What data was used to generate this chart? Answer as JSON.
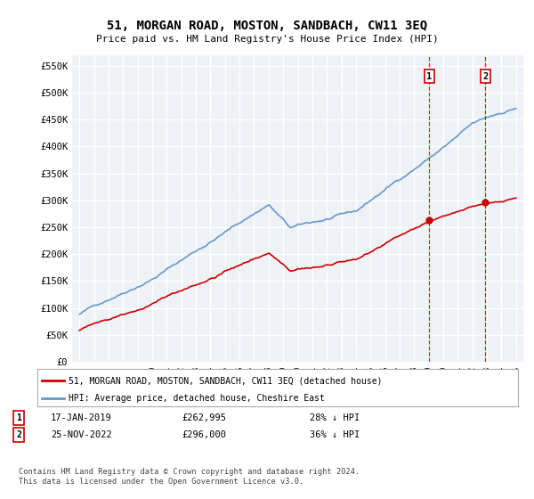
{
  "title": "51, MORGAN ROAD, MOSTON, SANDBACH, CW11 3EQ",
  "subtitle": "Price paid vs. HM Land Registry's House Price Index (HPI)",
  "ylabel_ticks": [
    "£0",
    "£50K",
    "£100K",
    "£150K",
    "£200K",
    "£250K",
    "£300K",
    "£350K",
    "£400K",
    "£450K",
    "£500K",
    "£550K"
  ],
  "ytick_values": [
    0,
    50000,
    100000,
    150000,
    200000,
    250000,
    300000,
    350000,
    400000,
    450000,
    500000,
    550000
  ],
  "ylim": [
    0,
    570000
  ],
  "hpi_color": "#6699cc",
  "price_color": "#cc0000",
  "marker1_year": 2019.04,
  "marker1_price": 262995,
  "marker1_label": "17-JAN-2019",
  "marker1_value_str": "£262,995",
  "marker1_pct": "28% ↓ HPI",
  "marker2_year": 2022.9,
  "marker2_price": 296000,
  "marker2_label": "25-NOV-2022",
  "marker2_value_str": "£296,000",
  "marker2_pct": "36% ↓ HPI",
  "legend_line1": "51, MORGAN ROAD, MOSTON, SANDBACH, CW11 3EQ (detached house)",
  "legend_line2": "HPI: Average price, detached house, Cheshire East",
  "footer": "Contains HM Land Registry data © Crown copyright and database right 2024.\nThis data is licensed under the Open Government Licence v3.0.",
  "background_plot": "#eef2f7",
  "background_fig": "#ffffff",
  "grid_color": "#ffffff",
  "x_start_year": 1995,
  "x_end_year": 2025
}
